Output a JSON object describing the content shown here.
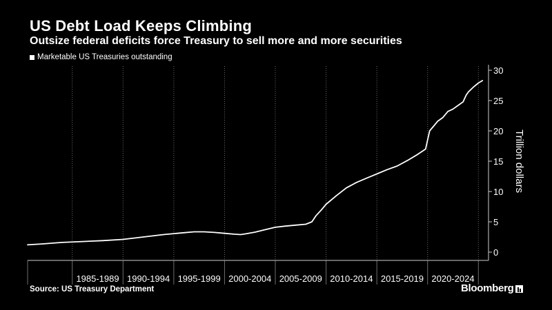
{
  "header": {
    "title": "US Debt Load Keeps Climbing",
    "subtitle": "Outsize federal deficits force Treasury to sell more and more securities"
  },
  "footer": {
    "source": "Source: US Treasury Department",
    "brand": "Bloomberg"
  },
  "colors": {
    "background": "#000000",
    "line": "#ffffff",
    "grid": "#6e6e6e"
  },
  "chart_data": {
    "type": "line",
    "title": "US Debt Load Keeps Climbing",
    "subtitle": "Outsize federal deficits force Treasury to sell more and more securities",
    "ylabel": "Trillion dollars",
    "xlabel": "",
    "ylim": [
      0,
      30
    ],
    "yticks": [
      0,
      5,
      10,
      15,
      20,
      25,
      30
    ],
    "xlim": [
      1980.6,
      2026.0
    ],
    "grid": "vertical dotted",
    "legend_placement": "top-left",
    "categories": [
      "1985-1989",
      "1990-1994",
      "1995-1999",
      "2000-2004",
      "2005-2009",
      "2010-2014",
      "2015-2019",
      "2020-2024"
    ],
    "series": [
      {
        "name": "Marketable US Treasuries outstanding",
        "x": [
          1980.6,
          1982,
          1984,
          1986,
          1988,
          1990,
          1992,
          1994,
          1996,
          1997,
          1998,
          1999,
          2000,
          2001,
          2001.6,
          2002,
          2003,
          2004,
          2005,
          2006,
          2007,
          2008,
          2008.6,
          2009,
          2009.5,
          2010,
          2011,
          2012,
          2013,
          2014,
          2015,
          2016,
          2017,
          2018,
          2019,
          2019.8,
          2020.0,
          2020.2,
          2020.4,
          2021,
          2021.5,
          2022,
          2022.5,
          2023,
          2023.5,
          2023.8,
          2024,
          2024.5,
          2025,
          2025.4
        ],
        "values": [
          1.2,
          1.35,
          1.6,
          1.75,
          1.9,
          2.1,
          2.5,
          2.9,
          3.2,
          3.35,
          3.35,
          3.25,
          3.1,
          2.95,
          2.9,
          3.0,
          3.3,
          3.7,
          4.1,
          4.3,
          4.45,
          4.6,
          5.0,
          6.0,
          6.9,
          7.9,
          9.3,
          10.6,
          11.5,
          12.2,
          12.9,
          13.6,
          14.2,
          15.1,
          16.1,
          17.0,
          18.5,
          20.0,
          20.4,
          21.6,
          22.2,
          23.2,
          23.6,
          24.2,
          24.8,
          25.9,
          26.4,
          27.2,
          27.9,
          28.3
        ]
      }
    ]
  }
}
